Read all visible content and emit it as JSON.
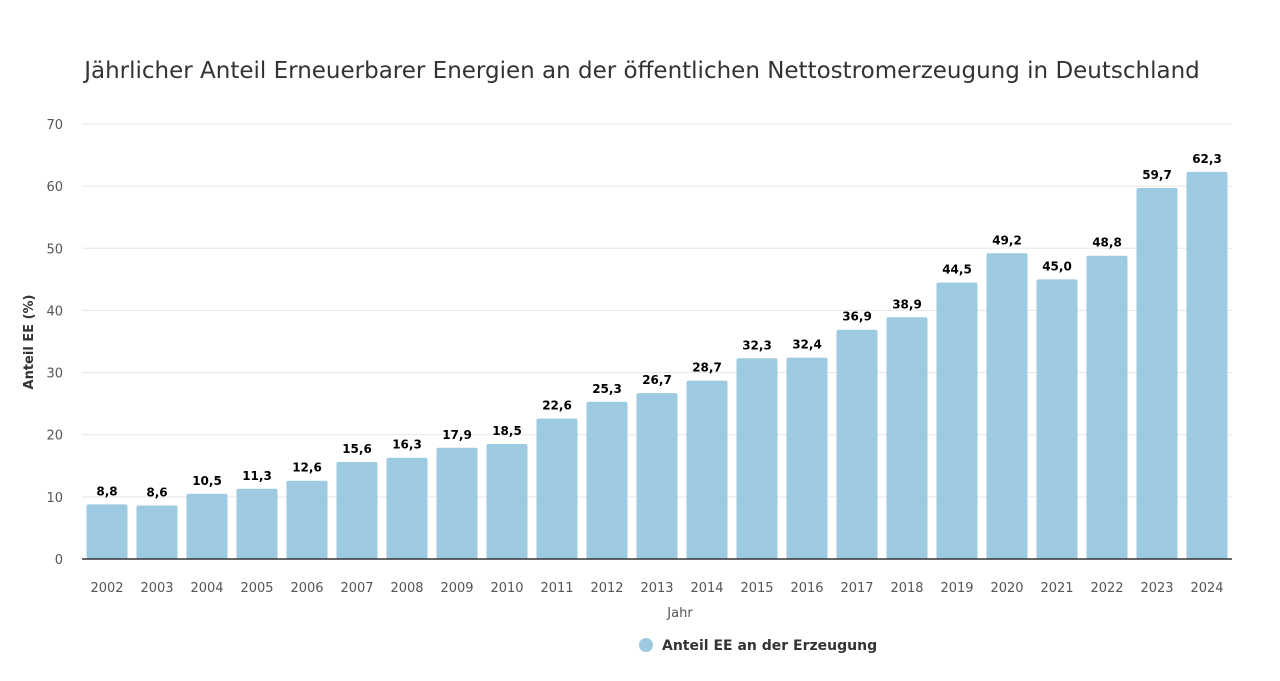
{
  "chart_data": {
    "type": "bar",
    "title": "Jährlicher Anteil Erneuerbarer Energien an der öffentlichen Nettostromerzeugung in Deutschland",
    "xlabel": "Jahr",
    "ylabel": "Anteil EE (%)",
    "ylim": [
      0,
      70
    ],
    "yticks": [
      0,
      10,
      20,
      30,
      40,
      50,
      60,
      70
    ],
    "grid": true,
    "legend_position": "bottom-center",
    "categories": [
      "2002",
      "2003",
      "2004",
      "2005",
      "2006",
      "2007",
      "2008",
      "2009",
      "2010",
      "2011",
      "2012",
      "2013",
      "2014",
      "2015",
      "2016",
      "2017",
      "2018",
      "2019",
      "2020",
      "2021",
      "2022",
      "2023",
      "2024"
    ],
    "series": [
      {
        "name": "Anteil EE an der Erzeugung",
        "color": "#9ecae1",
        "values": [
          8.8,
          8.6,
          10.5,
          11.3,
          12.6,
          15.6,
          16.3,
          17.9,
          18.5,
          22.6,
          25.3,
          26.7,
          28.7,
          32.3,
          32.4,
          36.9,
          38.9,
          44.5,
          49.2,
          45.0,
          48.8,
          59.7,
          62.3
        ],
        "labels": [
          "8,8",
          "8,6",
          "10,5",
          "11,3",
          "12,6",
          "15,6",
          "16,3",
          "17,9",
          "18,5",
          "22,6",
          "25,3",
          "26,7",
          "28,7",
          "32,3",
          "32,4",
          "36,9",
          "38,9",
          "44,5",
          "49,2",
          "45,0",
          "48,8",
          "59,7",
          "62,3"
        ]
      }
    ]
  }
}
